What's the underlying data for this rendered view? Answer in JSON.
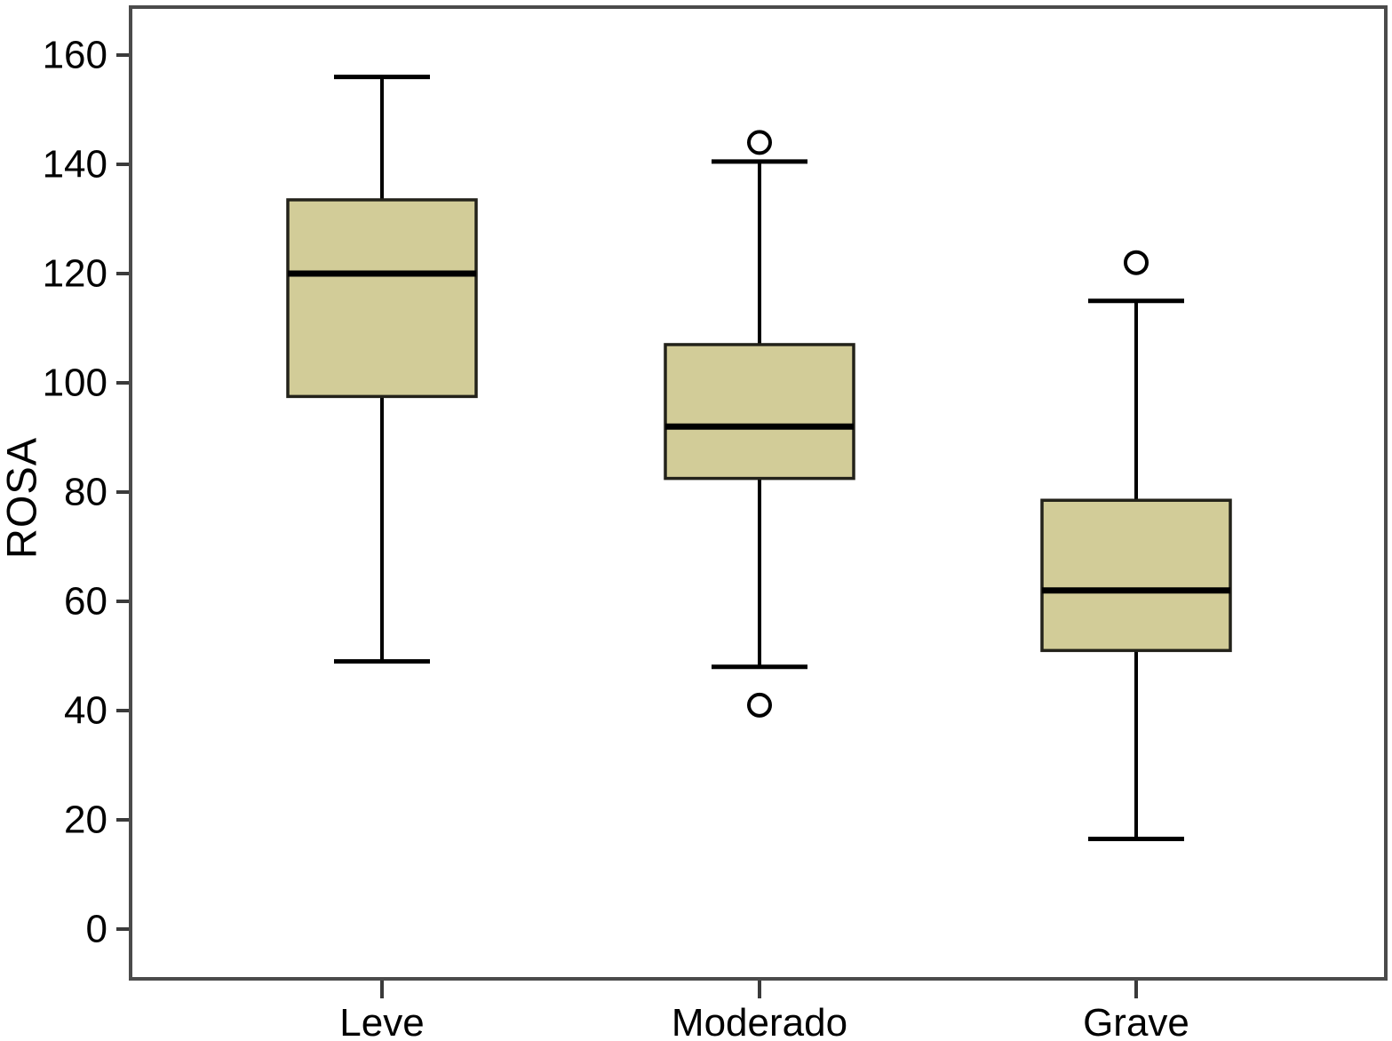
{
  "chart_data": {
    "type": "boxplot",
    "title": "",
    "xlabel": "",
    "ylabel": "ROSA",
    "categories": [
      "Leve",
      "Moderado",
      "Grave"
    ],
    "yticks": [
      0,
      20,
      40,
      60,
      80,
      100,
      120,
      140,
      160
    ],
    "ylim": [
      -9,
      169
    ],
    "grid": false,
    "legend": "none",
    "series": [
      {
        "name": "Leve",
        "min": 49,
        "q1": 97.5,
        "median": 120,
        "q3": 133.5,
        "max": 156,
        "outliers": []
      },
      {
        "name": "Moderado",
        "min": 48,
        "q1": 82.5,
        "median": 92,
        "q3": 107,
        "max": 140.5,
        "outliers": [
          144,
          41
        ]
      },
      {
        "name": "Grave",
        "min": 16.5,
        "q1": 51,
        "median": 62,
        "q3": 78.5,
        "max": 115,
        "outliers": [
          122
        ]
      }
    ],
    "colors": {
      "box_fill": "#d2cc98",
      "box_border": "#23221a",
      "line": "#000000",
      "frame": "#4b4b4b",
      "tick": "#3a3a3a",
      "text": "#000000",
      "background": "#ffffff"
    }
  }
}
